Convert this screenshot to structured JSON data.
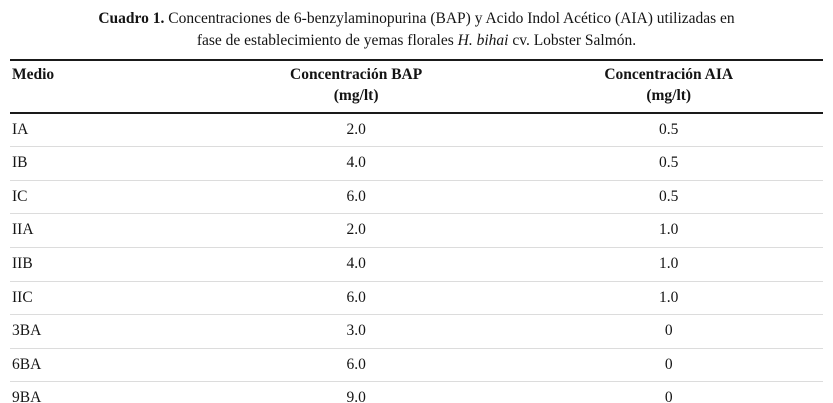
{
  "caption": {
    "label": "Cuadro 1.",
    "line1": "Concentraciones de 6-benzylaminopurina (BAP) y Acido Indol Acético (AIA) utilizadas en",
    "line2_before_italic": "fase de establecimiento de yemas florales",
    "species_italic": "H. bihai",
    "line2_after_italic": "cv. Lobster Salmón."
  },
  "table": {
    "headers": {
      "medio": "Medio",
      "bap_line1": "Concentración BAP",
      "bap_line2": "(mg/lt)",
      "aia_line1": "Concentración AIA",
      "aia_line2": "(mg/lt)"
    },
    "rows": [
      [
        "IA",
        "2.0",
        "0.5"
      ],
      [
        "IB",
        "4.0",
        "0.5"
      ],
      [
        "IC",
        "6.0",
        "0.5"
      ],
      [
        "IIA",
        "2.0",
        "1.0"
      ],
      [
        "IIB",
        "4.0",
        "1.0"
      ],
      [
        "IIC",
        "6.0",
        "1.0"
      ],
      [
        "3BA",
        "3.0",
        "0"
      ],
      [
        "6BA",
        "6.0",
        "0"
      ],
      [
        "9BA",
        "9.0",
        "0"
      ]
    ]
  }
}
